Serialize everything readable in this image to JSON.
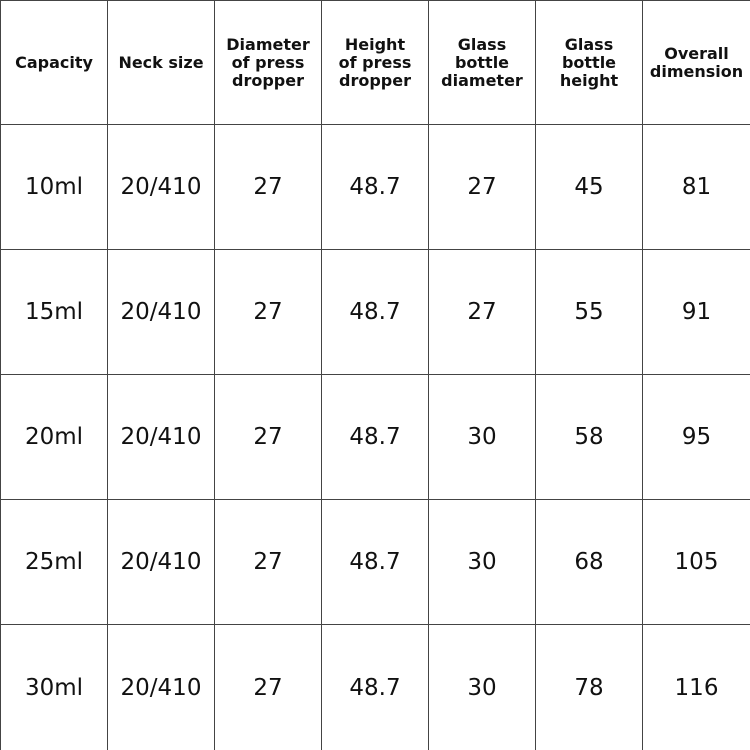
{
  "table": {
    "header": [
      "Capacity",
      "Neck size",
      "Diameter\nof press\ndropper",
      "Height\nof press\ndropper",
      "Glass\nbottle\ndiameter",
      "Glass\nbottle\nheight",
      "Overall\ndimension"
    ],
    "rows": [
      [
        "10ml",
        "20/410",
        "27",
        "48.7",
        "27",
        "45",
        "81"
      ],
      [
        "15ml",
        "20/410",
        "27",
        "48.7",
        "27",
        "55",
        "91"
      ],
      [
        "20ml",
        "20/410",
        "27",
        "48.7",
        "30",
        "58",
        "95"
      ],
      [
        "25ml",
        "20/410",
        "27",
        "48.7",
        "30",
        "68",
        "105"
      ],
      [
        "30ml",
        "20/410",
        "27",
        "48.7",
        "30",
        "78",
        "116"
      ]
    ]
  }
}
